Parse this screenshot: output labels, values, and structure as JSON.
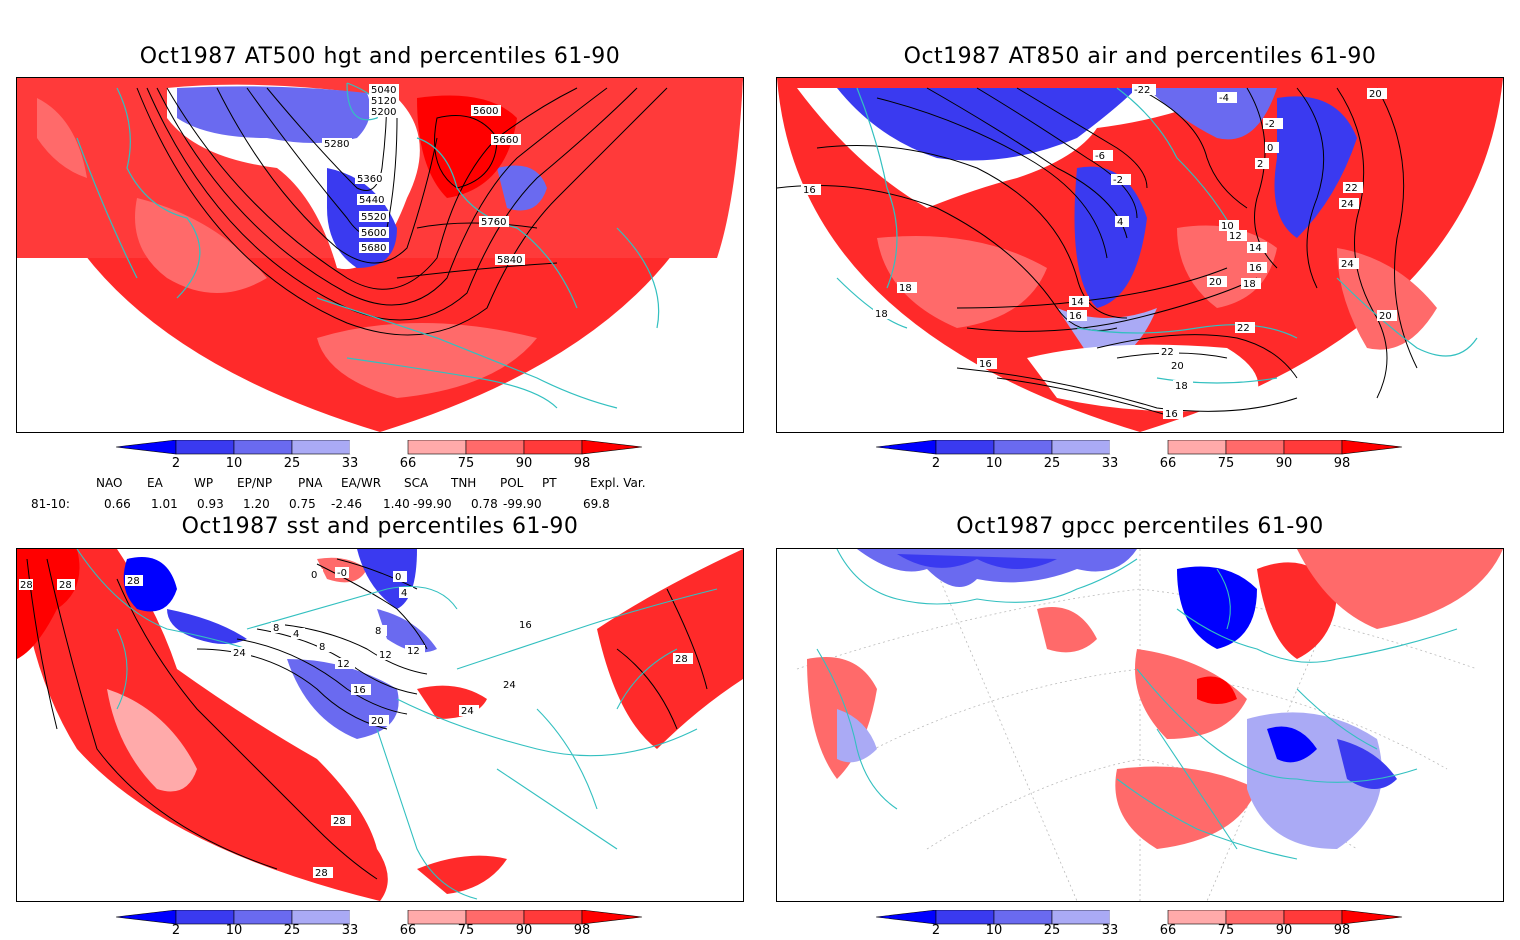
{
  "panels": [
    {
      "id": "hgt",
      "title": "Oct1987 AT500 hgt and percentiles 61-90",
      "contour_labels": [
        "5040",
        "5120",
        "5200",
        "5280",
        "5360",
        "5440",
        "5520",
        "5600",
        "5680",
        "5600",
        "5660",
        "5760",
        "5840"
      ]
    },
    {
      "id": "air",
      "title": "Oct1987 AT850 air and percentiles 61-90",
      "contour_labels": [
        "-22",
        "-4",
        "-2",
        "0",
        "2",
        "-6",
        "-2",
        "4",
        "16",
        "18",
        "18",
        "14",
        "16",
        "20",
        "18",
        "16",
        "14",
        "12",
        "10",
        "22",
        "24",
        "24",
        "20",
        "20",
        "22",
        "22",
        "20",
        "18",
        "16",
        "16"
      ]
    },
    {
      "id": "sst",
      "title": "Oct1987 sst and percentiles 61-90",
      "contour_labels": [
        "28",
        "28",
        "28",
        "24",
        "8",
        "4",
        "8",
        "12",
        "16",
        "20",
        "0",
        "-0",
        "0",
        "4",
        "8",
        "12",
        "12",
        "16",
        "24",
        "24",
        "28",
        "28",
        "28"
      ]
    },
    {
      "id": "gpcc",
      "title": "Oct1987 gpcc percentiles 61-90",
      "contour_labels": []
    }
  ],
  "colorbar": {
    "labels": [
      "2",
      "10",
      "25",
      "33",
      "66",
      "75",
      "90",
      "98"
    ],
    "colors": [
      "#0000ff",
      "#3a3af0",
      "#6a6af0",
      "#aaaaf5",
      "#ffffff",
      "#ffaaaa",
      "#ff6a6a",
      "#ff3a3a",
      "#ff0000"
    ]
  },
  "indices": {
    "headers": [
      "NAO",
      "EA",
      "WP",
      "EP/NP",
      "PNA",
      "EA/WR",
      "SCA",
      "TNH",
      "POL",
      "PT",
      "Expl. Var."
    ],
    "row_label": "81-10:",
    "values": [
      "0.66",
      "1.01",
      "0.93",
      "1.20",
      "0.75",
      "-2.46",
      "1.40",
      "-99.90",
      "0.78",
      "-99.90",
      "69.8"
    ]
  },
  "colors": {
    "coast": "#33c0c0",
    "red": "#ff2a2a",
    "blue": "#3333ee"
  }
}
